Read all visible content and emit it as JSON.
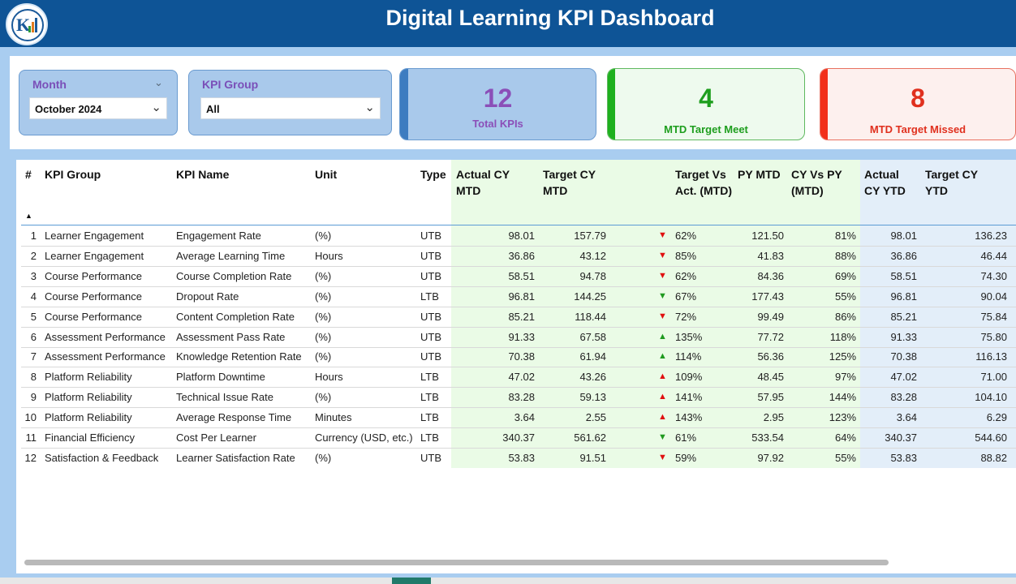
{
  "header": {
    "title": "Digital Learning KPI Dashboard",
    "logo_icon": "chart-logo-icon"
  },
  "slicers": {
    "month": {
      "label": "Month",
      "value": "October 2024"
    },
    "kpi_group": {
      "label": "KPI Group",
      "value": "All"
    }
  },
  "cards": {
    "total": {
      "value": "12",
      "label": "Total KPIs",
      "color": "#8b4fb8"
    },
    "met": {
      "value": "4",
      "label": "MTD Target Meet",
      "color": "#1e9e1e"
    },
    "missed": {
      "value": "8",
      "label": "MTD Target Missed",
      "color": "#e0301e"
    }
  },
  "table": {
    "headers": {
      "num": "#",
      "group": "KPI Group",
      "name": "KPI Name",
      "unit": "Unit",
      "type": "Type",
      "actual_mtd": "Actual CY MTD",
      "target_mtd": "Target CY MTD",
      "tva_mtd": "Target Vs Act. (MTD)",
      "py_mtd": "PY MTD",
      "cyvspy_mtd": "CY Vs PY (MTD)",
      "actual_ytd": "Actual CY YTD",
      "target_ytd": "Target CY YTD"
    },
    "rows": [
      {
        "n": "1",
        "group": "Learner Engagement",
        "name": "Engagement Rate",
        "unit": "(%)",
        "type": "UTB",
        "act": "98.01",
        "tgt": "157.79",
        "dir": "down",
        "pct": "62%",
        "py": "121.50",
        "cvp": "81%",
        "act_ytd": "98.01",
        "tgt_ytd": "136.23"
      },
      {
        "n": "2",
        "group": "Learner Engagement",
        "name": "Average Learning Time",
        "unit": "Hours",
        "type": "UTB",
        "act": "36.86",
        "tgt": "43.12",
        "dir": "down",
        "pct": "85%",
        "py": "41.83",
        "cvp": "88%",
        "act_ytd": "36.86",
        "tgt_ytd": "46.44"
      },
      {
        "n": "3",
        "group": "Course Performance",
        "name": "Course Completion Rate",
        "unit": " (%)",
        "type": "UTB",
        "act": "58.51",
        "tgt": "94.78",
        "dir": "down",
        "pct": "62%",
        "py": "84.36",
        "cvp": "69%",
        "act_ytd": "58.51",
        "tgt_ytd": "74.30"
      },
      {
        "n": "4",
        "group": "Course Performance",
        "name": "Dropout Rate",
        "unit": " (%)",
        "type": "LTB",
        "act": "96.81",
        "tgt": "144.25",
        "dir": "green-down",
        "pct": "67%",
        "py": "177.43",
        "cvp": "55%",
        "act_ytd": "96.81",
        "tgt_ytd": "90.04"
      },
      {
        "n": "5",
        "group": "Course Performance",
        "name": "Content Completion Rate",
        "unit": " (%)",
        "type": "UTB",
        "act": "85.21",
        "tgt": "118.44",
        "dir": "down",
        "pct": "72%",
        "py": "99.49",
        "cvp": "86%",
        "act_ytd": "85.21",
        "tgt_ytd": "75.84"
      },
      {
        "n": "6",
        "group": "Assessment Performance",
        "name": "Assessment Pass Rate",
        "unit": " (%)",
        "type": "UTB",
        "act": "91.33",
        "tgt": "67.58",
        "dir": "up",
        "pct": "135%",
        "py": "77.72",
        "cvp": "118%",
        "act_ytd": "91.33",
        "tgt_ytd": "75.80"
      },
      {
        "n": "7",
        "group": "Assessment Performance",
        "name": "Knowledge Retention Rate",
        "unit": " (%)",
        "type": "UTB",
        "act": "70.38",
        "tgt": "61.94",
        "dir": "up",
        "pct": "114%",
        "py": "56.36",
        "cvp": "125%",
        "act_ytd": "70.38",
        "tgt_ytd": "116.13"
      },
      {
        "n": "8",
        "group": "Platform Reliability",
        "name": "Platform Downtime",
        "unit": "Hours",
        "type": "LTB",
        "act": "47.02",
        "tgt": "43.26",
        "dir": "red-up",
        "pct": "109%",
        "py": "48.45",
        "cvp": "97%",
        "act_ytd": "47.02",
        "tgt_ytd": "71.00"
      },
      {
        "n": "9",
        "group": "Platform Reliability",
        "name": "Technical Issue Rate",
        "unit": "(%)",
        "type": "LTB",
        "act": "83.28",
        "tgt": "59.13",
        "dir": "red-up",
        "pct": "141%",
        "py": "57.95",
        "cvp": "144%",
        "act_ytd": "83.28",
        "tgt_ytd": "104.10"
      },
      {
        "n": "10",
        "group": "Platform Reliability",
        "name": "Average Response Time",
        "unit": "Minutes",
        "type": "LTB",
        "act": "3.64",
        "tgt": "2.55",
        "dir": "red-up",
        "pct": "143%",
        "py": "2.95",
        "cvp": "123%",
        "act_ytd": "3.64",
        "tgt_ytd": "6.29"
      },
      {
        "n": "11",
        "group": "Financial Efficiency",
        "name": "Cost Per Learner",
        "unit": "Currency (USD, etc.)",
        "type": "LTB",
        "act": "340.37",
        "tgt": "561.62",
        "dir": "green-down",
        "pct": "61%",
        "py": "533.54",
        "cvp": "64%",
        "act_ytd": "340.37",
        "tgt_ytd": "544.60"
      },
      {
        "n": "12",
        "group": "Satisfaction & Feedback",
        "name": "Learner Satisfaction Rate",
        "unit": " (%)",
        "type": "UTB",
        "act": "53.83",
        "tgt": "91.51",
        "dir": "down",
        "pct": "59%",
        "py": "97.92",
        "cvp": "55%",
        "act_ytd": "53.83",
        "tgt_ytd": "88.82"
      }
    ]
  }
}
